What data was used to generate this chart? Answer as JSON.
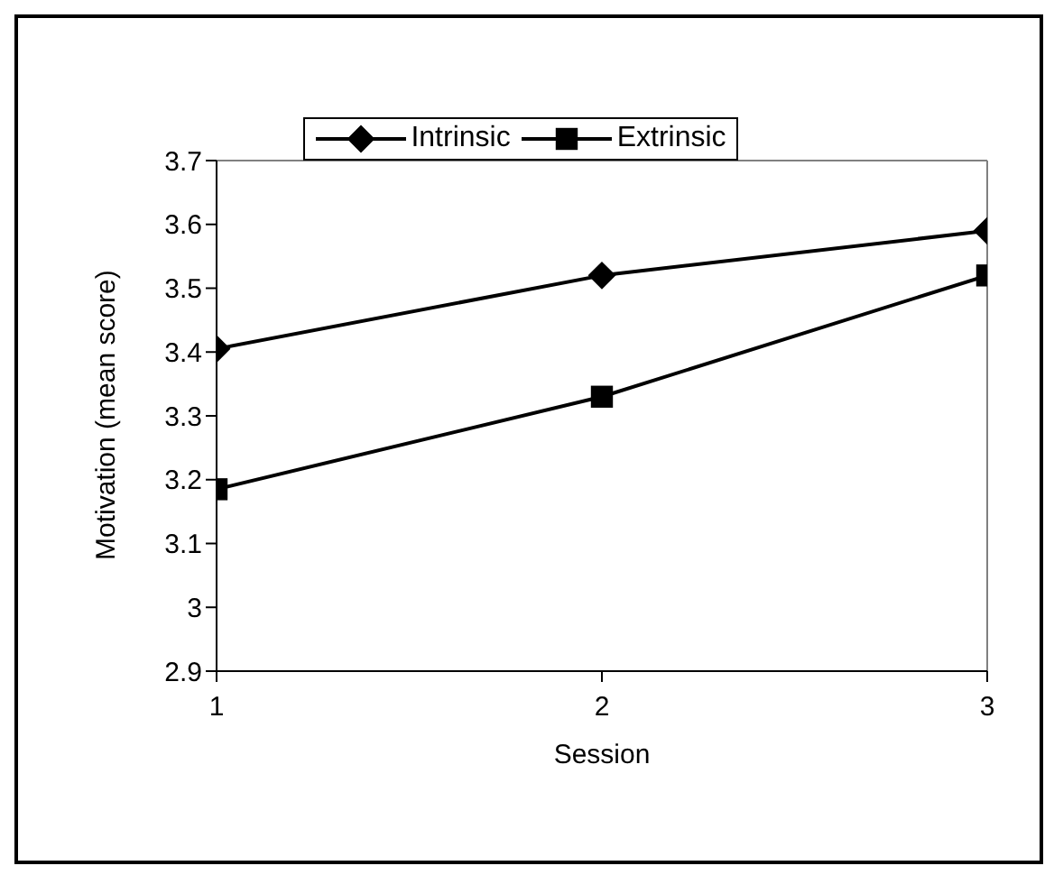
{
  "chart_data": {
    "type": "line",
    "xlabel": "Session",
    "ylabel": "Motivation (mean score)",
    "x": [
      1,
      2,
      3
    ],
    "xlim": [
      1,
      3
    ],
    "xticks": [
      1,
      2,
      3
    ],
    "ylim": [
      2.9,
      3.7
    ],
    "yticks": [
      2.9,
      3,
      3.1,
      3.2,
      3.3,
      3.4,
      3.5,
      3.6,
      3.7
    ],
    "grid": false,
    "legend": "top",
    "series": [
      {
        "name": "Intrinsic",
        "color": "#000000",
        "marker": "diamond",
        "values": [
          3.405,
          3.52,
          3.59
        ]
      },
      {
        "name": "Extrinsic",
        "color": "#000000",
        "marker": "square",
        "values": [
          3.185,
          3.33,
          3.52
        ]
      }
    ]
  }
}
